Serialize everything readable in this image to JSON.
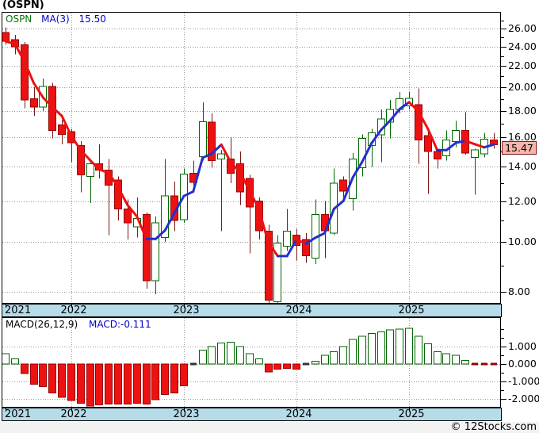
{
  "header": {
    "title": "(OSPN)"
  },
  "legend": {
    "symbol": "OSPN",
    "ma_label": "MA(3)",
    "ma_value": "15.50"
  },
  "last_price": {
    "label": "15.47",
    "value": 15.47
  },
  "macd": {
    "label": "MACD(26,12,9)",
    "value_label": "MACD:-0.111",
    "value": -0.111
  },
  "watermark": "© 12Stocks.com",
  "colors": {
    "up": "#006600",
    "up_fill": "#ffffff",
    "down": "#ee1111",
    "down_border": "#990000",
    "down_wick": "#7a1616",
    "ma_up": "#2230cc",
    "ma_down": "#ee1111",
    "grid": "#999999",
    "band_bg": "#b6dbe9",
    "highlight_bg": "#f8b4ab",
    "highlight_border": "#7a1a1a",
    "legend_symbol": "#007700",
    "legend_value": "#0000cc",
    "macd_value": "#0000cc",
    "zero_dash": "#333333",
    "footer_bg": "#f2f2f2"
  },
  "chart_data": [
    {
      "type": "candlestick",
      "title": "OSPN monthly candlesticks with MA(3)",
      "scale": "log",
      "ylim": [
        7.4,
        27.6
      ],
      "grid": true,
      "y_ticks": [
        {
          "value": 26,
          "label": "26.00"
        },
        {
          "value": 24,
          "label": "24.00"
        },
        {
          "value": 22,
          "label": "22.00"
        },
        {
          "value": 20,
          "label": "20.00"
        },
        {
          "value": 18,
          "label": "18.00"
        },
        {
          "value": 16,
          "label": "16.00"
        },
        {
          "value": 14,
          "label": "14.00"
        },
        {
          "value": 12,
          "label": "12.00"
        },
        {
          "value": 10,
          "label": "10.00"
        },
        {
          "value": 8,
          "label": "8.00"
        }
      ],
      "x_years": [
        {
          "label": "2021",
          "candle_index": 0
        },
        {
          "label": "2022",
          "candle_index": 7
        },
        {
          "label": "2023",
          "candle_index": 19
        },
        {
          "label": "2024",
          "candle_index": 31
        },
        {
          "label": "2025",
          "candle_index": 43
        }
      ],
      "candles": [
        [
          25.6,
          26.2,
          24.2,
          24.6
        ],
        [
          24.8,
          25.3,
          23.2,
          24.0
        ],
        [
          24.2,
          24.5,
          18.2,
          18.9
        ],
        [
          19.0,
          20.0,
          17.6,
          18.3
        ],
        [
          18.3,
          20.8,
          18.0,
          20.1
        ],
        [
          20.1,
          20.4,
          15.9,
          16.5
        ],
        [
          16.9,
          17.3,
          15.5,
          16.2
        ],
        [
          16.4,
          16.6,
          14.3,
          15.6
        ],
        [
          15.4,
          15.7,
          12.5,
          13.5
        ],
        [
          13.4,
          14.5,
          11.9,
          14.2
        ],
        [
          14.2,
          15.5,
          13.3,
          13.8
        ],
        [
          13.8,
          14.5,
          10.3,
          12.9
        ],
        [
          13.2,
          13.4,
          11.0,
          11.6
        ],
        [
          11.6,
          12.1,
          10.1,
          10.9
        ],
        [
          10.7,
          12.2,
          10.2,
          11.1
        ],
        [
          11.3,
          11.4,
          8.1,
          8.4
        ],
        [
          8.4,
          11.2,
          7.9,
          10.9
        ],
        [
          10.2,
          14.5,
          10.0,
          12.3
        ],
        [
          12.3,
          13.1,
          10.5,
          11.0
        ],
        [
          11.05,
          13.9,
          10.9,
          13.55
        ],
        [
          13.6,
          14.4,
          12.5,
          13.05
        ],
        [
          14.65,
          18.7,
          14.4,
          17.15
        ],
        [
          17.1,
          17.8,
          13.95,
          14.4
        ],
        [
          14.5,
          15.1,
          10.5,
          14.85
        ],
        [
          14.5,
          16.0,
          13.0,
          13.6
        ],
        [
          14.2,
          15.0,
          11.8,
          12.5
        ],
        [
          13.3,
          13.5,
          9.5,
          11.7
        ],
        [
          12.0,
          12.2,
          10.1,
          10.5
        ],
        [
          10.5,
          10.8,
          7.5,
          7.7
        ],
        [
          7.65,
          10.3,
          7.4,
          9.95
        ],
        [
          9.8,
          11.6,
          9.6,
          10.5
        ],
        [
          10.3,
          10.6,
          9.2,
          9.85
        ],
        [
          10.1,
          10.4,
          9.1,
          9.4
        ],
        [
          9.3,
          12.1,
          9.05,
          11.3
        ],
        [
          11.3,
          12.0,
          9.3,
          10.5
        ],
        [
          10.4,
          13.9,
          10.3,
          13.0
        ],
        [
          13.2,
          13.4,
          12.1,
          12.55
        ],
        [
          12.15,
          14.9,
          11.5,
          14.5
        ],
        [
          13.95,
          16.2,
          13.4,
          15.9
        ],
        [
          15.4,
          16.6,
          14.0,
          16.3
        ],
        [
          16.15,
          18.1,
          14.3,
          17.35
        ],
        [
          17.1,
          18.9,
          15.9,
          18.1
        ],
        [
          18.1,
          19.6,
          17.8,
          19.0
        ],
        [
          18.4,
          19.6,
          18.1,
          19.05
        ],
        [
          18.5,
          19.9,
          14.2,
          15.8
        ],
        [
          16.1,
          16.4,
          12.4,
          15.0
        ],
        [
          15.0,
          15.2,
          13.9,
          14.5
        ],
        [
          14.7,
          16.5,
          14.4,
          15.8
        ],
        [
          15.7,
          17.2,
          15.3,
          16.5
        ],
        [
          16.5,
          17.9,
          14.8,
          14.9
        ],
        [
          14.6,
          15.2,
          12.35,
          15.1
        ],
        [
          14.85,
          16.3,
          14.6,
          15.85
        ],
        [
          15.8,
          16.3,
          15.2,
          15.47
        ]
      ],
      "ma_period": 3,
      "last_close": 15.47
    },
    {
      "type": "bar",
      "title": "MACD(26,12,9) histogram",
      "ylim": [
        -2.45,
        2.6
      ],
      "grid": true,
      "y_ticks": [
        {
          "value": 1,
          "label": "1.000"
        },
        {
          "value": 0,
          "label": "0.000"
        },
        {
          "value": -1,
          "label": "-1.000"
        },
        {
          "value": -2,
          "label": "-2.000"
        }
      ],
      "values": [
        0.6,
        0.3,
        -0.55,
        -1.15,
        -1.3,
        -1.65,
        -1.9,
        -2.1,
        -2.25,
        -2.4,
        -2.35,
        -2.3,
        -2.3,
        -2.3,
        -2.25,
        -2.3,
        -2.05,
        -1.75,
        -1.65,
        -1.25,
        0.0,
        0.8,
        1.0,
        1.2,
        1.25,
        1.0,
        0.6,
        0.3,
        -0.45,
        -0.3,
        -0.25,
        -0.3,
        0.0,
        0.15,
        0.5,
        0.7,
        1.0,
        1.4,
        1.6,
        1.75,
        1.85,
        1.95,
        2.0,
        2.05,
        1.6,
        1.15,
        0.7,
        0.6,
        0.5,
        0.2,
        -0.08,
        -0.1,
        -0.111
      ]
    }
  ]
}
